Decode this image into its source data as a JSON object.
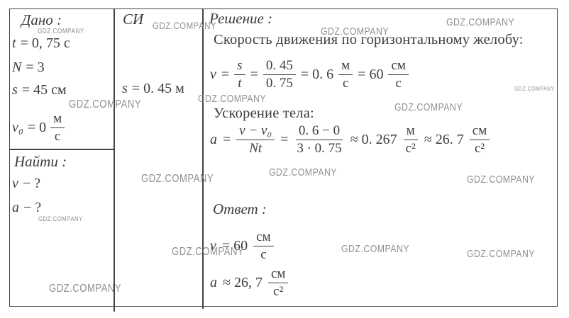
{
  "colors": {
    "ink": "#3d3d3d",
    "line": "#424242",
    "watermark": "#909090",
    "background": "#ffffff"
  },
  "watermark": {
    "text": "GDZ.COMPANY"
  },
  "given": {
    "header": "Дано :",
    "items": [
      [
        {
          "v": "t",
          "i": 1
        },
        {
          "v": "= 0, 75 с"
        }
      ],
      [
        {
          "v": "N",
          "i": 1
        },
        {
          "v": "= 3"
        }
      ],
      [
        {
          "v": "s",
          "i": 1
        },
        {
          "v": "= 45 см"
        }
      ],
      [
        {
          "v": "v₀",
          "i": 1
        },
        {
          "v": "= 0"
        },
        {
          "num": "м",
          "den": "с"
        }
      ]
    ]
  },
  "find": {
    "header": "Найти :",
    "items": [
      [
        {
          "v": "v",
          "i": 1
        },
        {
          "v": "− ?"
        }
      ],
      [
        {
          "v": "a",
          "i": 1
        },
        {
          "v": "− ?"
        }
      ]
    ]
  },
  "si": {
    "header": "СИ",
    "value": [
      {
        "v": "s",
        "i": 1
      },
      {
        "v": "= 0. 45 м"
      }
    ]
  },
  "solution": {
    "header": "Решение :",
    "velocity_caption": "Скорость движения по горизонтальному желобу:",
    "velocity_formula": [
      {
        "v": "v",
        "i": 1
      },
      {
        "v": "="
      },
      {
        "num": "s",
        "den": "t",
        "i": 1
      },
      {
        "v": "="
      },
      {
        "num": "0. 45",
        "den": "0. 75"
      },
      {
        "v": "= 0. 6"
      },
      {
        "num": "м",
        "den": "с"
      },
      {
        "v": "= 60"
      },
      {
        "num": "см",
        "den": "с"
      }
    ],
    "acceleration_caption": "Ускорение тела:",
    "acceleration_formula": [
      {
        "v": "a",
        "i": 1
      },
      {
        "v": "="
      },
      {
        "num": "v − v₀",
        "den": "Nt",
        "i": 1
      },
      {
        "v": "="
      },
      {
        "num": "0. 6 − 0",
        "den": "3 · 0. 75"
      },
      {
        "v": "≈ 0. 267"
      },
      {
        "num": "м",
        "den": "с²"
      },
      {
        "v": "≈ 26. 7"
      },
      {
        "num": "см",
        "den": "с²"
      }
    ],
    "answer_header": "Ответ :",
    "answer_velocity": [
      {
        "v": "v",
        "i": 1
      },
      {
        "v": "= 60"
      },
      {
        "num": "см",
        "den": "с"
      }
    ],
    "answer_acceleration": [
      {
        "v": "a",
        "i": 1
      },
      {
        "v": "≈ 26, 7"
      },
      {
        "num": "см",
        "den": "с²"
      }
    ]
  }
}
